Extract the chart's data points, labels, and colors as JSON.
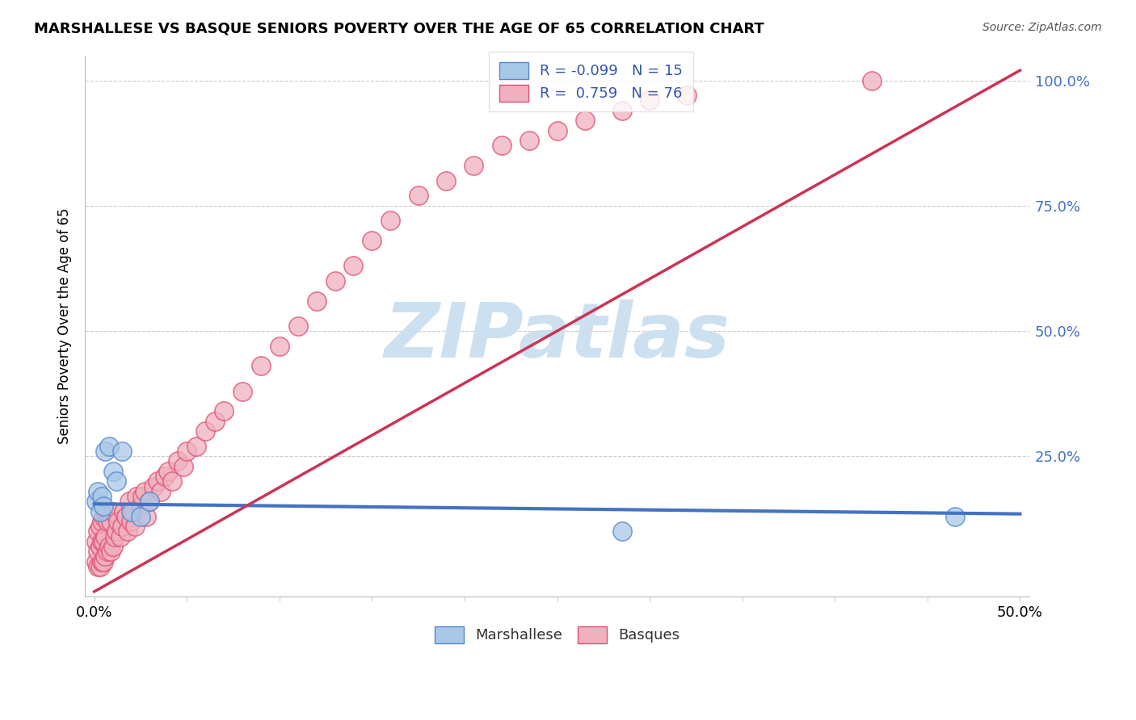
{
  "title": "MARSHALLESE VS BASQUE SENIORS POVERTY OVER THE AGE OF 65 CORRELATION CHART",
  "source": "Source: ZipAtlas.com",
  "ylabel": "Seniors Poverty Over the Age of 65",
  "xlim": [
    0.0,
    0.5
  ],
  "ylim": [
    0.0,
    1.05
  ],
  "xtick_positions": [
    0.0,
    0.05,
    0.1,
    0.15,
    0.2,
    0.25,
    0.3,
    0.35,
    0.4,
    0.45,
    0.5
  ],
  "xticklabels": [
    "0.0%",
    "",
    "",
    "",
    "",
    "",
    "",
    "",
    "",
    "",
    "50.0%"
  ],
  "ytick_positions": [
    0.0,
    0.25,
    0.5,
    0.75,
    1.0
  ],
  "ytick_labels_right": [
    "",
    "25.0%",
    "50.0%",
    "75.0%",
    "100.0%"
  ],
  "marshallese_color": "#a8c8e8",
  "basque_color": "#f0b0c0",
  "marshallese_edge_color": "#5588cc",
  "basque_edge_color": "#e05070",
  "marshallese_line_color": "#4472c4",
  "basque_line_color": "#cc3355",
  "marshallese_R": -0.099,
  "marshallese_N": 15,
  "basque_R": 0.759,
  "basque_N": 76,
  "watermark": "ZIPatlas",
  "watermark_color": "#cce0f0",
  "grid_color": "#cccccc",
  "background_color": "#ffffff",
  "marshallese_line_x0": 0.0,
  "marshallese_line_y0": 0.155,
  "marshallese_line_x1": 0.5,
  "marshallese_line_y1": 0.135,
  "basque_line_x0": 0.0,
  "basque_line_y0": -0.02,
  "basque_line_x1": 0.5,
  "basque_line_y1": 1.02,
  "marshallese_points_x": [
    0.001,
    0.002,
    0.003,
    0.004,
    0.005,
    0.006,
    0.008,
    0.01,
    0.012,
    0.015,
    0.02,
    0.025,
    0.03,
    0.285,
    0.465
  ],
  "marshallese_points_y": [
    0.16,
    0.18,
    0.14,
    0.17,
    0.15,
    0.26,
    0.27,
    0.22,
    0.2,
    0.26,
    0.14,
    0.13,
    0.16,
    0.1,
    0.13
  ],
  "basque_points_x": [
    0.001,
    0.001,
    0.002,
    0.002,
    0.002,
    0.003,
    0.003,
    0.003,
    0.004,
    0.004,
    0.004,
    0.005,
    0.005,
    0.005,
    0.006,
    0.006,
    0.006,
    0.007,
    0.007,
    0.008,
    0.008,
    0.009,
    0.009,
    0.01,
    0.01,
    0.011,
    0.012,
    0.013,
    0.014,
    0.015,
    0.016,
    0.017,
    0.018,
    0.019,
    0.02,
    0.021,
    0.022,
    0.023,
    0.025,
    0.026,
    0.027,
    0.028,
    0.03,
    0.032,
    0.034,
    0.036,
    0.038,
    0.04,
    0.042,
    0.045,
    0.048,
    0.05,
    0.055,
    0.06,
    0.065,
    0.07,
    0.08,
    0.09,
    0.1,
    0.11,
    0.12,
    0.13,
    0.14,
    0.15,
    0.16,
    0.175,
    0.19,
    0.205,
    0.22,
    0.235,
    0.25,
    0.265,
    0.285,
    0.3,
    0.32,
    0.42
  ],
  "basque_points_y": [
    0.04,
    0.08,
    0.03,
    0.06,
    0.1,
    0.03,
    0.07,
    0.11,
    0.04,
    0.08,
    0.12,
    0.04,
    0.08,
    0.13,
    0.05,
    0.09,
    0.14,
    0.06,
    0.12,
    0.07,
    0.14,
    0.06,
    0.12,
    0.07,
    0.14,
    0.09,
    0.1,
    0.12,
    0.09,
    0.11,
    0.14,
    0.13,
    0.1,
    0.16,
    0.12,
    0.14,
    0.11,
    0.17,
    0.15,
    0.17,
    0.18,
    0.13,
    0.16,
    0.19,
    0.2,
    0.18,
    0.21,
    0.22,
    0.2,
    0.24,
    0.23,
    0.26,
    0.27,
    0.3,
    0.32,
    0.34,
    0.38,
    0.43,
    0.47,
    0.51,
    0.56,
    0.6,
    0.63,
    0.68,
    0.72,
    0.77,
    0.8,
    0.83,
    0.87,
    0.88,
    0.9,
    0.92,
    0.94,
    0.96,
    0.97,
    1.0
  ]
}
